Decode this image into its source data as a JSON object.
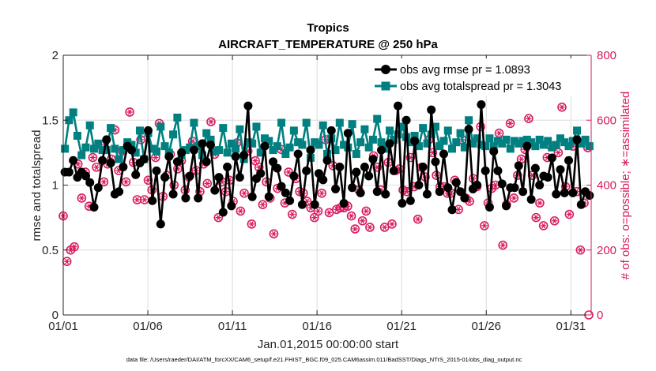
{
  "chart_data": {
    "type": "line",
    "title": "Tropics",
    "subtitle": "AIRCRAFT_TEMPERATURE @ 250 hPa",
    "xlabel": "Jan.01,2015 00:00:00 start",
    "ylabel": "rmse and totalspread",
    "ylabel_right": "# of obs: o=possible; ∗=assimilated",
    "footnote": "data file: /Users/raeder/DAI/ATM_forcXX/CAM6_setup/f.e21.FHIST_BGC.f09_025.CAM6assim.011/BadSST/Diags_NTrS_2015-01/obs_diag_output.nc",
    "xlim": [
      1,
      32.2
    ],
    "ylim": [
      0,
      2
    ],
    "ylim_right": [
      0,
      800
    ],
    "x_ticks": [
      {
        "value": 1,
        "label": "01/01"
      },
      {
        "value": 6,
        "label": "01/06"
      },
      {
        "value": 11,
        "label": "01/11"
      },
      {
        "value": 16,
        "label": "01/16"
      },
      {
        "value": 21,
        "label": "01/21"
      },
      {
        "value": 26,
        "label": "01/26"
      },
      {
        "value": 31,
        "label": "01/31"
      }
    ],
    "y_ticks": [
      {
        "value": 0,
        "label": "0"
      },
      {
        "value": 0.5,
        "label": "0.5"
      },
      {
        "value": 1,
        "label": "1"
      },
      {
        "value": 1.5,
        "label": "1.5"
      },
      {
        "value": 2,
        "label": "2"
      }
    ],
    "y_ticks_right": [
      {
        "value": 0,
        "label": "0"
      },
      {
        "value": 200,
        "label": "200"
      },
      {
        "value": 400,
        "label": "400"
      },
      {
        "value": 600,
        "label": "600"
      },
      {
        "value": 800,
        "label": "800"
      }
    ],
    "grid": true,
    "legend_position": "top-right",
    "colors": {
      "rmse": "#000000",
      "spread": "#008080",
      "obs": "#d81b60"
    },
    "series": [
      {
        "name": "obs avg rmse pr = 1.0893",
        "axis": "left",
        "values": [
          1.1,
          1.1,
          1.19,
          1.06,
          1.1,
          1.07,
          1.02,
          0.83,
          0.98,
          1.19,
          1.35,
          1.17,
          0.93,
          0.95,
          1.14,
          1.3,
          1.27,
          1.08,
          1.17,
          1.2,
          1.42,
          0.88,
          1.11,
          0.7,
          1.06,
          1.22,
          0.93,
          1.18,
          1.25,
          0.9,
          1.07,
          1.27,
          0.9,
          1.32,
          1.18,
          1.31,
          0.96,
          1.06,
          0.79,
          1.14,
          0.84,
          1.22,
          1.06,
          1.23,
          1.61,
          0.91,
          1.05,
          1.09,
          1.3,
          0.91,
          1.18,
          1.13,
          0.99,
          0.94,
          0.88,
          1.07,
          1.24,
          0.85,
          1.11,
          1.27,
          0.85,
          1.09,
          1.04,
          1.19,
          1.42,
          0.97,
          1.14,
          0.86,
          1.4,
          0.98,
          1.1,
          0.94,
          1.14,
          1.07,
          1.2,
          0.95,
          1.27,
          0.93,
          1.32,
          1.11,
          1.61,
          0.86,
          1.5,
          0.88,
          1.34,
          1.0,
          1.14,
          0.93,
          1.58,
          1.18,
          0.95,
          1.24,
          0.98,
          0.81,
          1.02,
          0.95,
          0.9,
          1.43,
          0.97,
          1.0,
          1.62,
          1.11,
          0.83,
          1.26,
          1.11,
          1.01,
          0.84,
          0.98,
          0.98,
          1.15,
          0.95,
          1.3,
          0.89,
          1.13,
          1.0,
          1.07,
          1.06,
          1.21,
          0.93,
          1.12,
          0.94,
          1.19,
          0.94,
          1.35,
          0.85,
          0.95,
          0.92
        ]
      },
      {
        "name": "obs avg totalspread pr = 1.3043",
        "axis": "left",
        "values": [
          1.28,
          1.5,
          1.56,
          1.38,
          1.23,
          1.29,
          1.46,
          1.28,
          1.32,
          1.27,
          1.27,
          1.44,
          1.28,
          1.2,
          1.27,
          1.33,
          1.31,
          1.25,
          1.42,
          1.2,
          1.4,
          1.28,
          1.26,
          1.45,
          1.3,
          1.25,
          1.39,
          1.52,
          1.23,
          1.27,
          1.29,
          1.48,
          1.3,
          1.23,
          1.4,
          1.35,
          1.26,
          1.27,
          1.44,
          1.25,
          1.32,
          1.28,
          1.43,
          1.2,
          1.33,
          1.32,
          1.45,
          1.25,
          1.36,
          1.34,
          1.27,
          1.3,
          1.48,
          1.24,
          1.29,
          1.42,
          1.33,
          1.31,
          1.48,
          1.21,
          1.33,
          1.31,
          1.46,
          1.24,
          1.36,
          1.27,
          1.48,
          1.31,
          1.29,
          1.47,
          1.24,
          1.33,
          1.43,
          1.29,
          1.35,
          1.51,
          1.33,
          1.28,
          1.42,
          1.35,
          1.39,
          1.45,
          1.37,
          1.33,
          1.38,
          1.3,
          1.44,
          1.32,
          1.39,
          1.45,
          1.3,
          1.34,
          1.42,
          1.28,
          1.33,
          1.4,
          1.29,
          1.5,
          1.32,
          1.36,
          1.31,
          1.3,
          1.36,
          1.3,
          1.34,
          1.32,
          1.35,
          1.28,
          1.34,
          1.32,
          1.34,
          1.35,
          1.33,
          1.3,
          1.35,
          1.31,
          1.34,
          1.29,
          1.31,
          1.36,
          1.33,
          1.3,
          1.34,
          1.42,
          1.32,
          1.35,
          1.3
        ]
      },
      {
        "name": "possible",
        "axis": "right",
        "values": [
          305,
          165,
          200,
          210,
          465,
          360,
          440,
          335,
          485,
          455,
          525,
          410,
          465,
          480,
          570,
          445,
          505,
          410,
          625,
          470,
          355,
          540,
          355,
          415,
          385,
          485,
          590,
          365,
          430,
          495,
          400,
          450,
          475,
          385,
          425,
          535,
          445,
          380,
          465,
          405,
          595,
          495,
          300,
          410,
          380,
          415,
          350,
          530,
          320,
          375,
          505,
          280,
          475,
          455,
          340,
          410,
          360,
          250,
          390,
          510,
          345,
          440,
          310,
          420,
          380,
          375,
          350,
          330,
          300,
          320,
          375,
          540,
          315,
          460,
          325,
          330,
          330,
          335,
          305,
          265,
          385,
          290,
          320,
          270,
          490,
          455,
          385,
          270,
          470,
          280,
          445,
          450,
          385,
          380,
          485,
          395,
          295,
          455,
          425,
          540,
          500,
          430,
          395,
          395,
          375,
          375,
          415,
          325,
          540,
          360,
          350,
          420,
          395,
          580,
          275,
          345,
          390,
          400,
          560,
          215,
          340,
          590,
          360,
          430,
          480,
          510,
          605,
          430,
          300,
          345,
          275,
          485,
          520,
          290,
          500,
          640,
          395,
          310,
          520,
          380,
          200,
          345,
          515
        ]
      },
      {
        "name": "assimilated",
        "axis": "right",
        "values": [
          305,
          165,
          200,
          210,
          465,
          360,
          440,
          335,
          485,
          455,
          525,
          410,
          465,
          480,
          570,
          445,
          505,
          410,
          625,
          470,
          355,
          540,
          355,
          415,
          385,
          485,
          590,
          365,
          430,
          495,
          400,
          450,
          475,
          385,
          425,
          535,
          445,
          380,
          465,
          405,
          595,
          495,
          300,
          410,
          380,
          415,
          350,
          530,
          320,
          375,
          505,
          280,
          475,
          455,
          340,
          410,
          360,
          250,
          390,
          510,
          345,
          440,
          310,
          420,
          380,
          375,
          350,
          330,
          300,
          320,
          375,
          540,
          315,
          460,
          325,
          330,
          330,
          335,
          305,
          265,
          385,
          290,
          320,
          270,
          490,
          455,
          385,
          270,
          470,
          280,
          445,
          450,
          385,
          380,
          485,
          395,
          295,
          455,
          425,
          540,
          500,
          430,
          395,
          395,
          375,
          375,
          415,
          325,
          540,
          360,
          350,
          420,
          395,
          580,
          275,
          345,
          390,
          400,
          560,
          215,
          340,
          590,
          360,
          430,
          480,
          510,
          605,
          430,
          300,
          345,
          275,
          485,
          520,
          290,
          500,
          640,
          395,
          310,
          520,
          380,
          200,
          345,
          515
        ]
      }
    ],
    "last_obs_value": 0
  }
}
